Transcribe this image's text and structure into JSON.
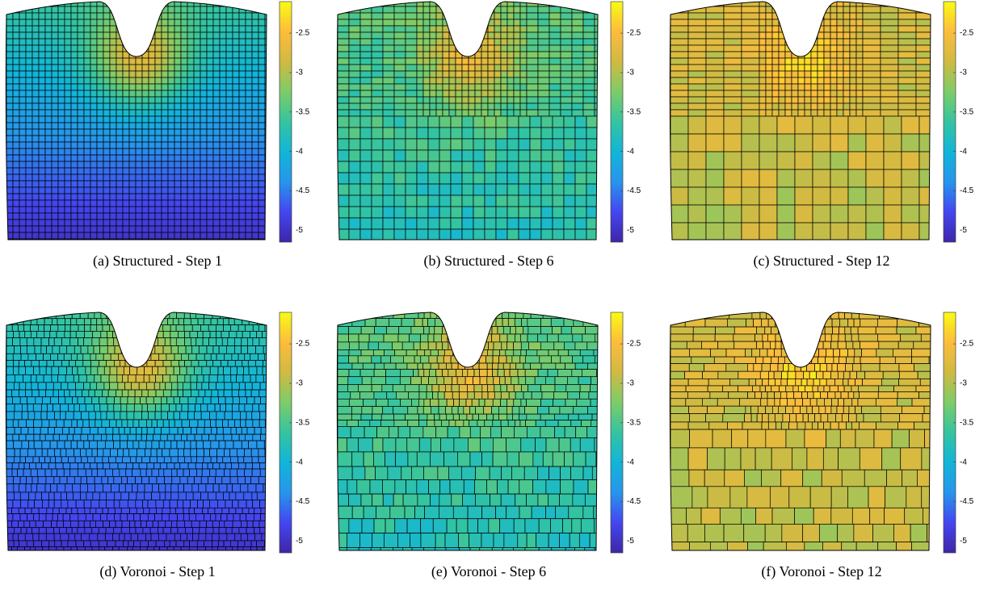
{
  "panels": [
    {
      "caption": "(a) Structured - Step 1",
      "colorbar": {
        "lim": [
          -5.15,
          -2.1
        ],
        "ticks": [
          -5,
          -4.5,
          -4,
          -3.5,
          -3,
          -2.5
        ]
      }
    },
    {
      "caption": "(b) Structured - Step 6",
      "colorbar": {
        "lim": [
          -5.15,
          -2.1
        ],
        "ticks": [
          -5,
          -4.5,
          -4,
          -3.5,
          -3,
          -2.5
        ]
      }
    },
    {
      "caption": "(c) Structured - Step 12",
      "colorbar": {
        "lim": [
          -5.15,
          -2.1
        ],
        "ticks": [
          -5,
          -4.5,
          -4,
          -3.5,
          -3,
          -2.5
        ]
      }
    },
    {
      "caption": "(d) Voronoi - Step 1",
      "colorbar": {
        "lim": [
          -5.15,
          -2.1
        ],
        "ticks": [
          -5,
          -4.5,
          -4,
          -3.5,
          -3,
          -2.5
        ]
      }
    },
    {
      "caption": "(e) Voronoi - Step 6",
      "colorbar": {
        "lim": [
          -5.15,
          -2.1
        ],
        "ticks": [
          -5,
          -4.5,
          -4,
          -3.5,
          -3,
          -2.5
        ]
      }
    },
    {
      "caption": "(f) Voronoi - Step 12",
      "colorbar": {
        "lim": [
          -5.15,
          -2.1
        ],
        "ticks": [
          -5,
          -4.5,
          -4,
          -3.5,
          -3,
          -2.5
        ]
      }
    }
  ]
}
